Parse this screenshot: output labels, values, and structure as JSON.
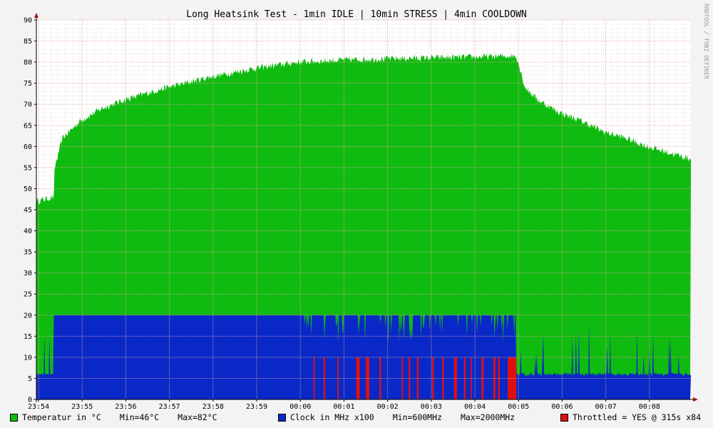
{
  "chart_data": {
    "type": "area",
    "title": "Long Heatsink Test - 1min IDLE | 10min STRESS | 4min COOLDOWN",
    "watermark": "RRDTOOL / TOBI OETIKER",
    "ylim": [
      0,
      90
    ],
    "yticks": [
      0,
      5,
      10,
      15,
      20,
      25,
      30,
      35,
      40,
      45,
      50,
      55,
      60,
      65,
      70,
      75,
      80,
      85,
      90
    ],
    "xlim": [
      "23:53:57",
      "00:08:57"
    ],
    "xticks": [
      "23:54",
      "23:55",
      "23:56",
      "23:57",
      "23:58",
      "23:59",
      "00:00",
      "00:01",
      "00:02",
      "00:03",
      "00:04",
      "00:05",
      "00:06",
      "00:07",
      "00:08"
    ],
    "grid": true,
    "legend_position": "bottom",
    "colors": {
      "temperature": "#10bb10",
      "clock": "#0a28c8",
      "throttled": "#e01010",
      "background": "#ffffff",
      "grid": "#e2a3a3",
      "axis": "#000000",
      "arrow": "#a01010"
    },
    "series": [
      {
        "name": "Temperatur in °C",
        "key": "temperature",
        "x_minutes": [
          0,
          0.4,
          0.42,
          0.6,
          1,
          1.5,
          2,
          3,
          4,
          5,
          6,
          7,
          8,
          9,
          10,
          11,
          11.2,
          11.5,
          12,
          12.5,
          13,
          13.5,
          14,
          14.5,
          15
        ],
        "values": [
          47,
          48,
          55,
          62,
          66,
          69,
          71,
          74,
          76.5,
          78.5,
          80,
          80.5,
          80.8,
          81,
          81.2,
          81.5,
          74,
          71,
          68,
          66,
          63.5,
          62,
          60,
          58.5,
          57
        ]
      },
      {
        "name": "Clock in MHz x100",
        "key": "clock",
        "segments": [
          {
            "from": 0,
            "to": 0.4,
            "value": 6
          },
          {
            "from": 0.4,
            "to": 6.1,
            "value": 20
          },
          {
            "from": 6.1,
            "to": 11.0,
            "value": 20,
            "dips": "frequent drops to 13-17"
          },
          {
            "from": 11.0,
            "to": 15,
            "value": 6,
            "spikes": "occasional spikes to 10-19"
          }
        ]
      },
      {
        "name": "Throttled = YES @ 315s x84",
        "key": "throttled",
        "intervals_minutes": [
          [
            6.35,
            6.38
          ],
          [
            6.58,
            6.62
          ],
          [
            6.9,
            6.93
          ],
          [
            7.33,
            7.41
          ],
          [
            7.55,
            7.63
          ],
          [
            7.86,
            7.9
          ],
          [
            8.37,
            8.4
          ],
          [
            8.53,
            8.57
          ],
          [
            8.72,
            8.76
          ],
          [
            9.07,
            9.11
          ],
          [
            9.3,
            9.34
          ],
          [
            9.57,
            9.64
          ],
          [
            9.8,
            9.84
          ],
          [
            9.95,
            9.98
          ],
          [
            10.2,
            10.25
          ],
          [
            10.47,
            10.52
          ],
          [
            10.58,
            10.62
          ],
          [
            10.8,
            10.91
          ],
          [
            10.91,
            11.0
          ]
        ],
        "value": 10
      }
    ]
  },
  "legend": {
    "temperature": {
      "label": "Temperatur in °C",
      "min": "Min=46°C",
      "max": "Max=82°C"
    },
    "clock": {
      "label": "Clock in MHz x100",
      "min": "Min=600MHz",
      "max": "Max=2000MHz"
    },
    "throttled": {
      "label": "Throttled = YES @ 315s x84"
    }
  }
}
